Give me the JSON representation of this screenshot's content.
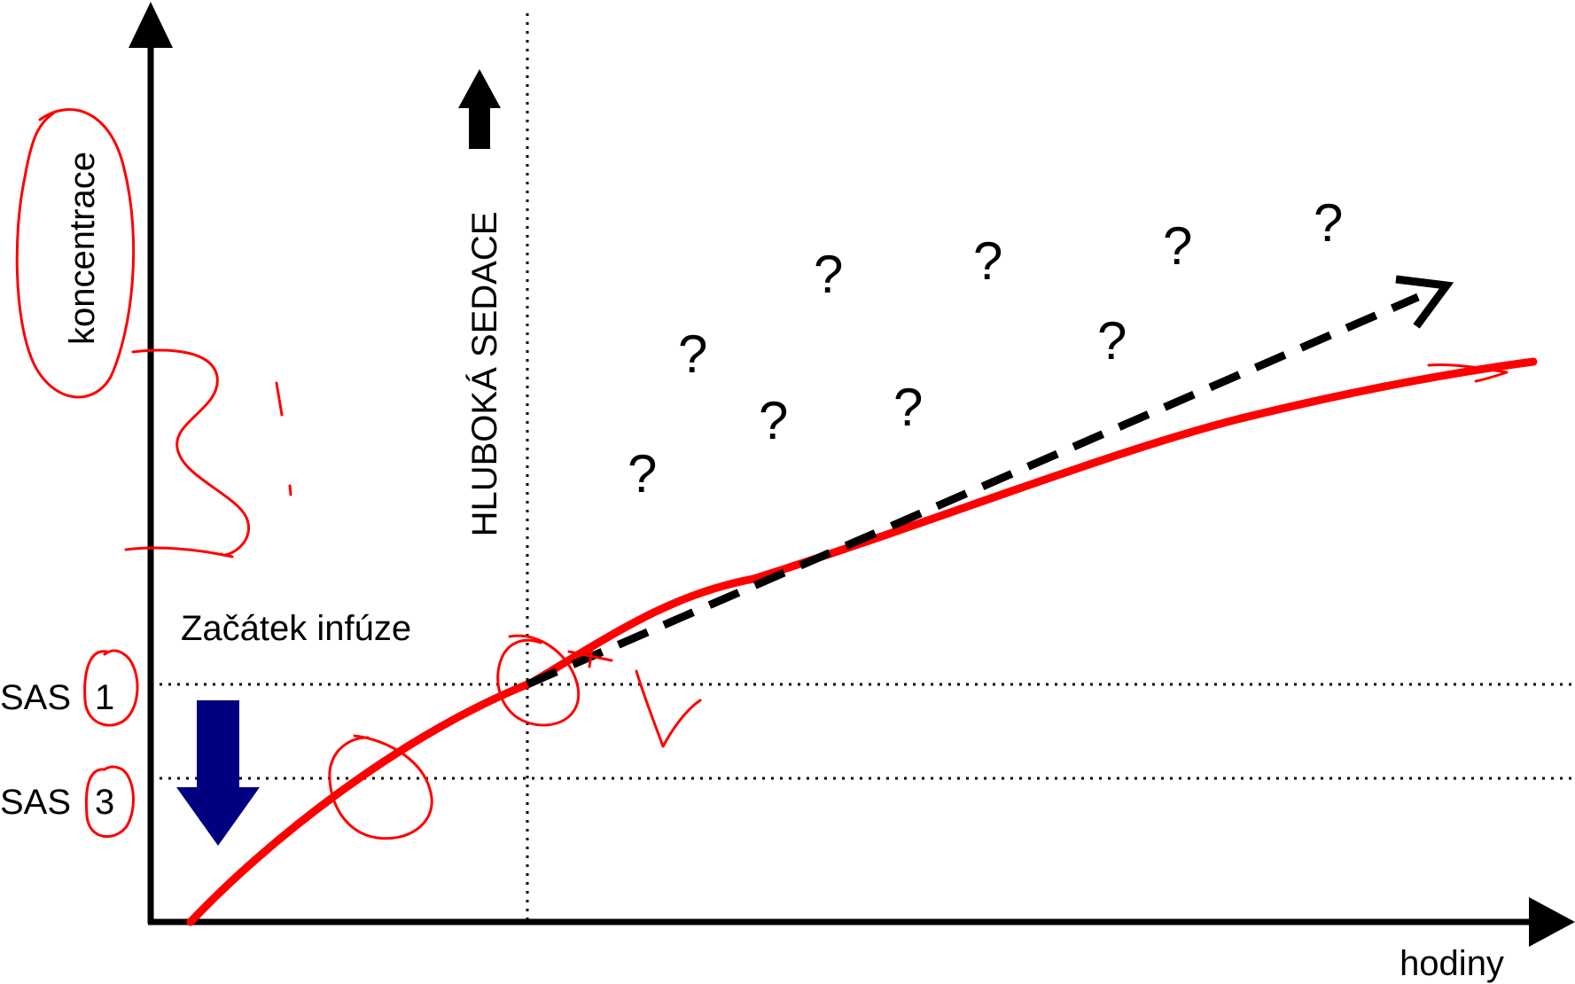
{
  "labels": {
    "y_axis": "koncentrace",
    "x_axis": "hodiny",
    "infusion_start": "Začátek infúze",
    "deep_sedation": "HLUBOKÁ SEDACE",
    "sas1_prefix": "SAS",
    "sas1_number": "1",
    "sas3_prefix": "SAS",
    "sas3_number": "3",
    "question_mark": "?"
  },
  "colors": {
    "axis": "#000000",
    "concentration_curve": "#ff0000",
    "annotation": "#ff0000",
    "infusion_arrow": "#000080",
    "deep_sedation_arrow": "#000000",
    "reference_lines": "#000000"
  }
}
